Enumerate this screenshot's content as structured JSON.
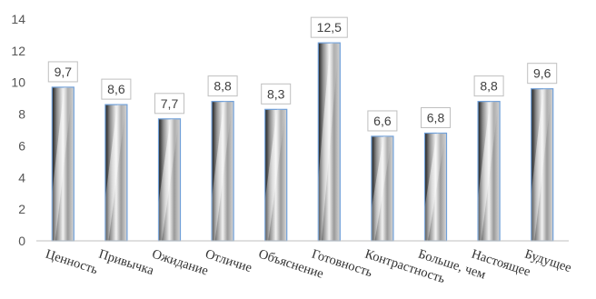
{
  "chart_data": {
    "type": "bar",
    "categories": [
      "Ценность",
      "Привычка",
      "Ожидание",
      "Отличие",
      "Объяснение",
      "Готовность",
      "Контрастность",
      "Больше, чем",
      "Настоящее",
      "Будущее"
    ],
    "values": [
      9.7,
      8.6,
      7.7,
      8.8,
      8.3,
      12.5,
      6.6,
      6.8,
      8.8,
      9.6
    ],
    "data_labels": [
      "9,7",
      "8,6",
      "7,7",
      "8,8",
      "8,3",
      "12,5",
      "6,6",
      "6,8",
      "8,8",
      "9,6"
    ],
    "y_ticks": [
      "0",
      "2",
      "4",
      "6",
      "8",
      "10",
      "12",
      "14"
    ],
    "ylim": [
      0,
      14
    ],
    "title": "",
    "xlabel": "",
    "ylabel": "",
    "grid": false,
    "legend": "none",
    "colors": {
      "bar_outline": "#6f9fd8",
      "bar_light": "#f2f2f2",
      "bar_mid": "#8c8c8c",
      "bar_dark": "#1a1a1a",
      "axis": "#bfbfbf",
      "label_box": "#bfbfbf"
    }
  }
}
